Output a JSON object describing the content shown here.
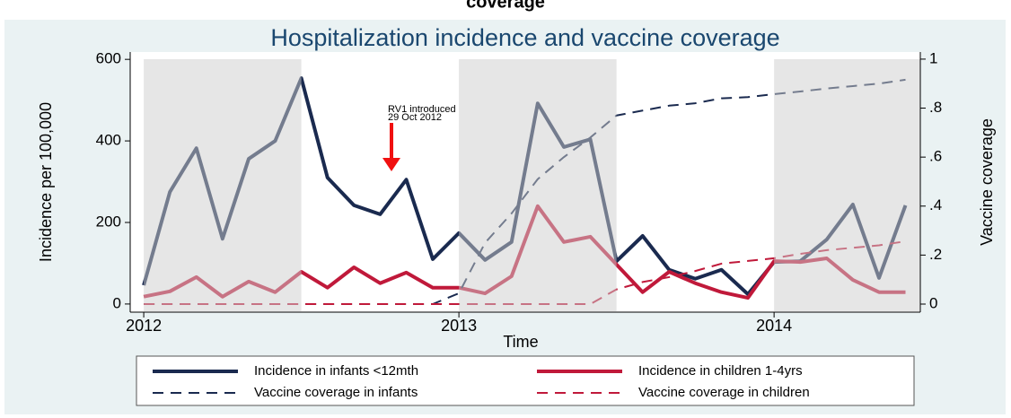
{
  "caption": "coverage",
  "chart_data": {
    "type": "line",
    "title": "Hospitalization incidence and vaccine coverage",
    "x_label": "Time",
    "y_label": "Incidence per 100,000",
    "y2_label": "Vaccine coverage",
    "annotations": [
      "RV1 introduced",
      "29 Oct 2012"
    ],
    "x": [
      2012,
      2012.083,
      2012.167,
      2012.25,
      2012.333,
      2012.417,
      2012.5,
      2012.583,
      2012.667,
      2012.75,
      2012.833,
      2012.917,
      2013,
      2013.083,
      2013.167,
      2013.25,
      2013.333,
      2013.417,
      2013.5,
      2013.583,
      2013.667,
      2013.75,
      2013.833,
      2013.917,
      2014,
      2014.083,
      2014.167,
      2014.25,
      2014.333,
      2014.417
    ],
    "xlim": [
      2011.957,
      2014.464
    ],
    "xticks": [
      2012,
      2013,
      2014
    ],
    "ylim": [
      -20,
      618
    ],
    "yticks": [
      0,
      200,
      400,
      600
    ],
    "y2lim": [
      -0.033,
      1.029
    ],
    "y2ticks": [
      0,
      {
        "value": 0.2,
        "label": ".2"
      },
      {
        "value": 0.4,
        "label": ".4"
      },
      {
        "value": 0.6,
        "label": ".6"
      },
      {
        "value": 0.8,
        "label": ".8"
      },
      1
    ],
    "shaded_half_years": true,
    "series": [
      {
        "name": "Incidence in infants <12mth",
        "color": "#1a2a4f",
        "dashed": false,
        "values": [
          46,
          275,
          382,
          160,
          356,
          400,
          554,
          310,
          242,
          220,
          305,
          110,
          174,
          108,
          152,
          492,
          385,
          404,
          105,
          167,
          84,
          62,
          84,
          24,
          103,
          105,
          158,
          244,
          64,
          242
        ]
      },
      {
        "name": "Incidence in children 1-4yrs",
        "color": "#c0193a",
        "dashed": false,
        "values": [
          18,
          31,
          66,
          18,
          55,
          29,
          79,
          40,
          90,
          51,
          77,
          40,
          40,
          26,
          68,
          240,
          152,
          165,
          97,
          29,
          79,
          51,
          29,
          15,
          105,
          103,
          112,
          59,
          29,
          29
        ]
      },
      {
        "name": "Vaccine coverage in infants",
        "color": "#1a2a4f",
        "dashed": true,
        "axis": "y2",
        "values": [
          0,
          0,
          0,
          0,
          0,
          0,
          0,
          0,
          0,
          0,
          0,
          0,
          0.044,
          0.25,
          0.37,
          0.51,
          0.6,
          0.68,
          0.77,
          0.79,
          0.81,
          0.82,
          0.84,
          0.845,
          0.857,
          0.868,
          0.88,
          0.89,
          0.9,
          0.916
        ]
      },
      {
        "name": "Vaccine coverage in children",
        "color": "#c0193a",
        "dashed": true,
        "axis": "y2",
        "values": [
          0,
          0,
          0,
          0,
          0,
          0,
          0,
          0,
          0,
          0,
          0,
          0,
          0,
          0,
          0,
          0,
          0,
          0,
          0.06,
          0.09,
          0.11,
          0.135,
          0.165,
          0.176,
          0.187,
          0.205,
          0.22,
          0.23,
          0.24,
          0.256
        ]
      }
    ]
  }
}
